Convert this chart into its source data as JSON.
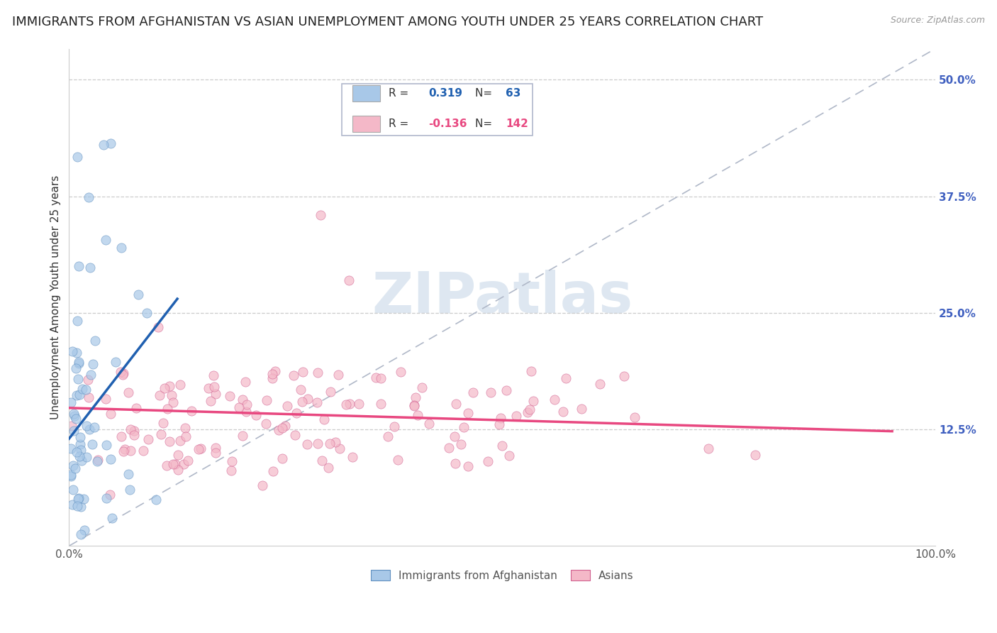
{
  "title": "IMMIGRANTS FROM AFGHANISTAN VS ASIAN UNEMPLOYMENT AMONG YOUTH UNDER 25 YEARS CORRELATION CHART",
  "source": "Source: ZipAtlas.com",
  "ylabel": "Unemployment Among Youth under 25 years",
  "xlim": [
    0.0,
    1.0
  ],
  "ylim": [
    0.0,
    0.5333
  ],
  "yticks": [
    0.125,
    0.25,
    0.375,
    0.5
  ],
  "ytick_labels": [
    "12.5%",
    "25.0%",
    "37.5%",
    "50.0%"
  ],
  "blue_R": 0.319,
  "blue_N": 63,
  "pink_R": -0.136,
  "pink_N": 142,
  "blue_color": "#a8c8e8",
  "pink_color": "#f4b8c8",
  "blue_line_color": "#2060b0",
  "pink_line_color": "#e84880",
  "blue_edge_color": "#6090c0",
  "pink_edge_color": "#d06090",
  "background_color": "#ffffff",
  "grid_color": "#cccccc",
  "watermark_text": "ZIPatlas",
  "watermark_color": "#c8d8e8",
  "legend_label_blue": "Immigrants from Afghanistan",
  "legend_label_pink": "Asians",
  "title_fontsize": 13,
  "ylabel_fontsize": 11,
  "tick_fontsize": 11,
  "legend_fontsize": 11,
  "blue_trend_x0": 0.0,
  "blue_trend_x1": 0.125,
  "blue_trend_y0": 0.115,
  "blue_trend_y1": 0.265,
  "pink_trend_x0": 0.0,
  "pink_trend_x1": 0.95,
  "pink_trend_y0": 0.148,
  "pink_trend_y1": 0.123
}
